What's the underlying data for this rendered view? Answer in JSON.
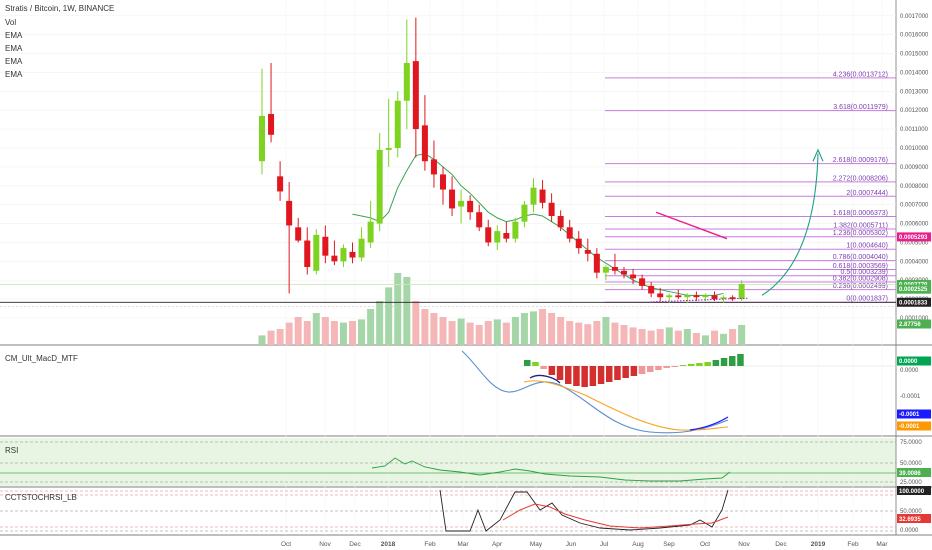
{
  "header": {
    "symbol_line": "Stratis / Bitcoin, 1W, BINANCE",
    "indicators": [
      "Vol",
      "EMA",
      "EMA",
      "EMA",
      "EMA"
    ]
  },
  "chart_data": [
    {
      "type": "candlestick",
      "title": "Stratis / Bitcoin, 1W, BINANCE",
      "y_axis_ticks": [
        "0.0017000",
        "0.0016000",
        "0.0015000",
        "0.0014000",
        "0.0013000",
        "0.0012000",
        "0.0011000",
        "0.0010000",
        "0.0009000",
        "0.0008000",
        "0.0007000",
        "0.0006000",
        "0.0005000",
        "0.0004000",
        "0.0003000",
        "0.0002000",
        "0.0001000"
      ],
      "ylim": [
        0.0001,
        0.00172
      ],
      "x_ticks": [
        "Oct",
        "Nov",
        "Dec",
        "2018",
        "Feb",
        "Mar",
        "Apr",
        "May",
        "Jun",
        "Jul",
        "Aug",
        "Sep",
        "Oct",
        "Nov",
        "Dec",
        "2019",
        "Feb",
        "Mar"
      ],
      "candles": [
        {
          "o": 0.00093,
          "h": 0.00142,
          "l": 0.00086,
          "c": 0.00117
        },
        {
          "o": 0.00118,
          "h": 0.00145,
          "l": 0.00103,
          "c": 0.00107
        },
        {
          "o": 0.00085,
          "h": 0.00093,
          "l": 0.00072,
          "c": 0.00077
        },
        {
          "o": 0.00072,
          "h": 0.00082,
          "l": 0.00023,
          "c": 0.00059
        },
        {
          "o": 0.00058,
          "h": 0.00063,
          "l": 0.0005,
          "c": 0.00051
        },
        {
          "o": 0.00051,
          "h": 0.00058,
          "l": 0.00033,
          "c": 0.00037
        },
        {
          "o": 0.00035,
          "h": 0.00057,
          "l": 0.00033,
          "c": 0.00054
        },
        {
          "o": 0.00053,
          "h": 0.00059,
          "l": 0.00039,
          "c": 0.00043
        },
        {
          "o": 0.00043,
          "h": 0.00051,
          "l": 0.00038,
          "c": 0.0004
        },
        {
          "o": 0.0004,
          "h": 0.00049,
          "l": 0.00037,
          "c": 0.00047
        },
        {
          "o": 0.00045,
          "h": 0.0005,
          "l": 0.00039,
          "c": 0.00042
        },
        {
          "o": 0.00042,
          "h": 0.00058,
          "l": 0.0004,
          "c": 0.00052
        },
        {
          "o": 0.0005,
          "h": 0.00072,
          "l": 0.00047,
          "c": 0.00061
        },
        {
          "o": 0.0006,
          "h": 0.00108,
          "l": 0.00056,
          "c": 0.00099
        },
        {
          "o": 0.00099,
          "h": 0.00126,
          "l": 0.0009,
          "c": 0.001
        },
        {
          "o": 0.001,
          "h": 0.0013,
          "l": 0.00095,
          "c": 0.00125
        },
        {
          "o": 0.00125,
          "h": 0.00168,
          "l": 0.0011,
          "c": 0.00145
        },
        {
          "o": 0.00146,
          "h": 0.00169,
          "l": 0.00095,
          "c": 0.0011
        },
        {
          "o": 0.00112,
          "h": 0.00128,
          "l": 0.00088,
          "c": 0.00093
        },
        {
          "o": 0.00094,
          "h": 0.00104,
          "l": 0.00079,
          "c": 0.00086
        },
        {
          "o": 0.00086,
          "h": 0.0009,
          "l": 0.0007,
          "c": 0.00078
        },
        {
          "o": 0.00078,
          "h": 0.00085,
          "l": 0.00064,
          "c": 0.00068
        },
        {
          "o": 0.00069,
          "h": 0.00078,
          "l": 0.0006,
          "c": 0.00072
        },
        {
          "o": 0.00072,
          "h": 0.00075,
          "l": 0.00062,
          "c": 0.00066
        },
        {
          "o": 0.00066,
          "h": 0.0007,
          "l": 0.00056,
          "c": 0.00058
        },
        {
          "o": 0.00058,
          "h": 0.00062,
          "l": 0.00048,
          "c": 0.0005
        },
        {
          "o": 0.0005,
          "h": 0.00059,
          "l": 0.00046,
          "c": 0.00056
        },
        {
          "o": 0.00055,
          "h": 0.00061,
          "l": 0.0005,
          "c": 0.00052
        },
        {
          "o": 0.00052,
          "h": 0.00063,
          "l": 0.0005,
          "c": 0.00061
        },
        {
          "o": 0.00061,
          "h": 0.00072,
          "l": 0.00058,
          "c": 0.0007
        },
        {
          "o": 0.0007,
          "h": 0.00084,
          "l": 0.00066,
          "c": 0.00079
        },
        {
          "o": 0.00078,
          "h": 0.00083,
          "l": 0.00068,
          "c": 0.00071
        },
        {
          "o": 0.00071,
          "h": 0.00076,
          "l": 0.00061,
          "c": 0.00064
        },
        {
          "o": 0.00064,
          "h": 0.00067,
          "l": 0.00056,
          "c": 0.00058
        },
        {
          "o": 0.00058,
          "h": 0.00062,
          "l": 0.0005,
          "c": 0.00052
        },
        {
          "o": 0.00052,
          "h": 0.00056,
          "l": 0.00044,
          "c": 0.00047
        },
        {
          "o": 0.00046,
          "h": 0.00052,
          "l": 0.0004,
          "c": 0.00044
        },
        {
          "o": 0.00044,
          "h": 0.00047,
          "l": 0.00031,
          "c": 0.00034
        },
        {
          "o": 0.00034,
          "h": 0.00038,
          "l": 0.0003,
          "c": 0.00037
        },
        {
          "o": 0.00037,
          "h": 0.00044,
          "l": 0.00033,
          "c": 0.00035
        },
        {
          "o": 0.00035,
          "h": 0.00037,
          "l": 0.00031,
          "c": 0.00033
        },
        {
          "o": 0.00033,
          "h": 0.00036,
          "l": 0.00028,
          "c": 0.00031
        },
        {
          "o": 0.00031,
          "h": 0.00033,
          "l": 0.00025,
          "c": 0.00027
        },
        {
          "o": 0.00027,
          "h": 0.00029,
          "l": 0.00021,
          "c": 0.00023
        },
        {
          "o": 0.00023,
          "h": 0.00026,
          "l": 0.00019,
          "c": 0.00021
        },
        {
          "o": 0.00021,
          "h": 0.00023,
          "l": 0.00018,
          "c": 0.00022
        },
        {
          "o": 0.00022,
          "h": 0.00025,
          "l": 0.0002,
          "c": 0.00021
        },
        {
          "o": 0.00021,
          "h": 0.00023,
          "l": 0.00018,
          "c": 0.00022
        },
        {
          "o": 0.00022,
          "h": 0.00024,
          "l": 0.00019,
          "c": 0.00021
        },
        {
          "o": 0.00021,
          "h": 0.00023,
          "l": 0.00019,
          "c": 0.00022
        },
        {
          "o": 0.00022,
          "h": 0.00024,
          "l": 0.00019,
          "c": 0.0002
        },
        {
          "o": 0.0002,
          "h": 0.00022,
          "l": 0.00018,
          "c": 0.00021
        },
        {
          "o": 0.00021,
          "h": 0.00022,
          "l": 0.00019,
          "c": 0.0002
        },
        {
          "o": 0.0002,
          "h": 0.0003,
          "l": 0.00019,
          "c": 0.00028
        }
      ],
      "volume_rel": [
        0.12,
        0.18,
        0.2,
        0.28,
        0.35,
        0.3,
        0.4,
        0.35,
        0.3,
        0.28,
        0.3,
        0.32,
        0.45,
        0.55,
        0.72,
        0.9,
        0.85,
        0.55,
        0.45,
        0.4,
        0.35,
        0.3,
        0.33,
        0.28,
        0.25,
        0.3,
        0.32,
        0.28,
        0.35,
        0.4,
        0.42,
        0.45,
        0.4,
        0.35,
        0.3,
        0.28,
        0.26,
        0.3,
        0.35,
        0.28,
        0.25,
        0.22,
        0.2,
        0.18,
        0.2,
        0.22,
        0.18,
        0.2,
        0.15,
        0.12,
        0.18,
        0.14,
        0.2,
        0.25
      ],
      "ema": [
        0.00065,
        0.00064,
        0.00063,
        0.00061,
        0.00066,
        0.00079,
        0.00088,
        0.00096,
        0.00097,
        0.00094,
        0.0009,
        0.00086,
        0.0008,
        0.00076,
        0.00071,
        0.00066,
        0.00063,
        0.00061,
        0.00062,
        0.00064,
        0.00065,
        0.00064,
        0.00061,
        0.00058,
        0.00054,
        0.0005,
        0.00046,
        0.00042,
        0.00039,
        0.00036,
        0.00033,
        0.0003,
        0.00028,
        0.00026,
        0.00025,
        0.00024,
        0.00023,
        0.00022,
        0.00022,
        0.00022,
        0.00022,
        0.00023
      ],
      "ema_start_index": 10,
      "fib_levels": [
        {
          "label": "4.236(0.0013712)",
          "value": 0.0013712
        },
        {
          "label": "3.618(0.0011979)",
          "value": 0.0011979
        },
        {
          "label": "2.618(0.0009176)",
          "value": 0.0009176
        },
        {
          "label": "2.272(0.0008206)",
          "value": 0.0008206
        },
        {
          "label": "2(0.0007444)",
          "value": 0.0007444
        },
        {
          "label": "1.618(0.0006373)",
          "value": 0.0006373
        },
        {
          "label": "1.382(0.0005711)",
          "value": 0.0005711
        },
        {
          "label": "1.236(0.0005302)",
          "value": 0.0005302
        },
        {
          "label": "1(0.0004640)",
          "value": 0.000464
        },
        {
          "label": "0.786(0.0004040)",
          "value": 0.000404
        },
        {
          "label": "0.618(0.0003569)",
          "value": 0.0003569
        },
        {
          "label": "0.5(0.0003239)",
          "value": 0.0003239
        },
        {
          "label": "0.382(0.0002908)",
          "value": 0.0002908
        },
        {
          "label": "0.236(0.0002499)",
          "value": 0.0002499
        },
        {
          "label": "0(0.0001837)",
          "value": 0.0001837
        }
      ],
      "price_badges": [
        {
          "text": "0.0005293",
          "value": 0.0005293,
          "color": "#e91e8c"
        },
        {
          "text": "0.0002779",
          "value": 0.0002779,
          "color": "#4caf50"
        },
        {
          "text": "0.0002525",
          "value": 0.0002525,
          "color": "#4caf50"
        },
        {
          "text": "0.0001833",
          "value": 0.0001833,
          "color": "#222222"
        },
        {
          "text": "2.87756",
          "value": null,
          "color": "#4caf50"
        }
      ]
    },
    {
      "type": "histogram+line",
      "title": "CM_Ult_MacD_MTF",
      "y_axis_ticks": [
        "0.0000",
        "-0.0001"
      ],
      "price_badges": [
        {
          "text": "0.0000",
          "color": "#00a651"
        },
        {
          "text": "-0.0001",
          "color": "#1a1aff"
        },
        {
          "text": "-0.0001",
          "color": "#ff9800"
        }
      ]
    },
    {
      "type": "line",
      "title": "RSI",
      "y_axis_ticks": [
        "75.0000",
        "50.0000",
        "25.0000"
      ],
      "price_badges": [
        {
          "text": "39.0086",
          "color": "#4caf50"
        }
      ]
    },
    {
      "type": "line",
      "title": "CCTSTOCHRSI_LB",
      "y_axis_ticks": [
        "100.0000",
        "50.0000",
        "0.0000"
      ],
      "price_badges": [
        {
          "text": "100.0000",
          "color": "#222222"
        },
        {
          "text": "32.6935",
          "color": "#e53935"
        }
      ]
    }
  ]
}
